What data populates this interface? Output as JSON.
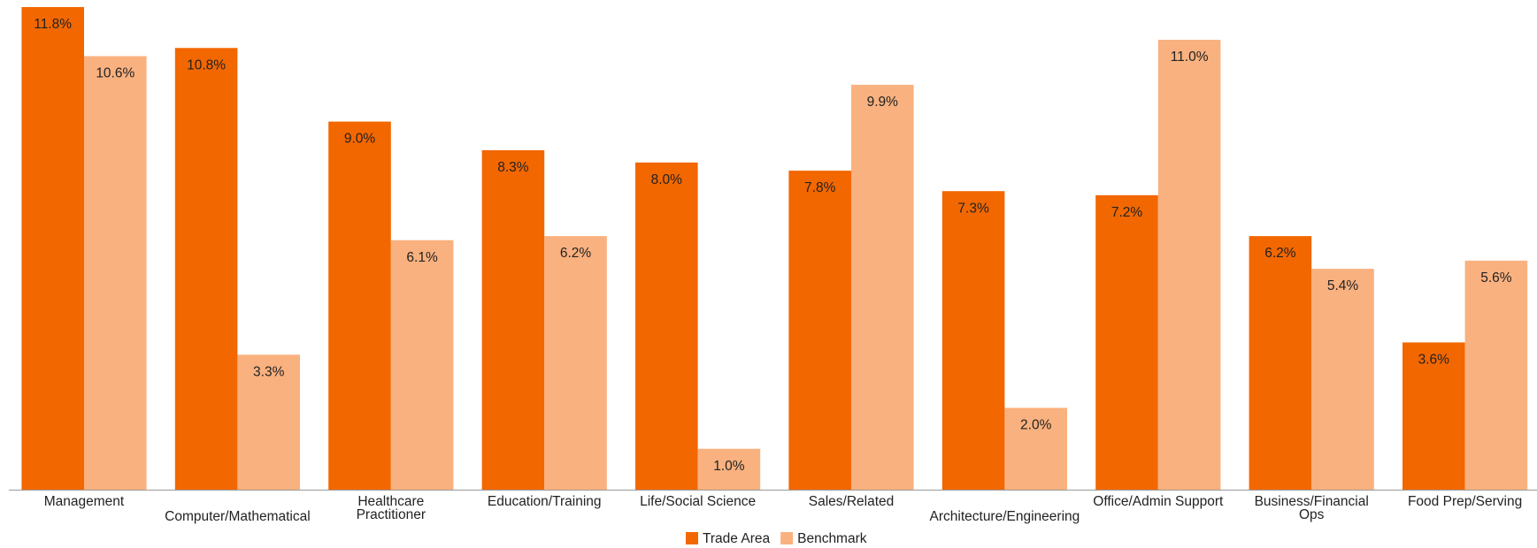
{
  "chart_data": {
    "type": "bar",
    "categories": [
      "Management",
      "Computer/Mathematical",
      "Healthcare Practitioner",
      "Education/Training",
      "Life/Social Science",
      "Sales/Related",
      "Architecture/Engineering",
      "Office/Admin Support",
      "Business/Financial Ops",
      "Food Prep/Serving"
    ],
    "series": [
      {
        "name": "Trade Area",
        "color": "#f26700",
        "values": [
          11.8,
          10.8,
          9.0,
          8.3,
          8.0,
          7.8,
          7.3,
          7.2,
          6.2,
          3.6
        ],
        "value_labels": [
          "11.8%",
          "10.8%",
          "9.0%",
          "8.3%",
          "8.0%",
          "7.8%",
          "7.3%",
          "7.2%",
          "6.2%",
          "3.6%"
        ]
      },
      {
        "name": "Benchmark",
        "color": "#f9b17f",
        "values": [
          10.6,
          3.3,
          6.1,
          6.2,
          1.0,
          9.9,
          2.0,
          11.0,
          5.4,
          5.6
        ],
        "value_labels": [
          "10.6%",
          "3.3%",
          "6.1%",
          "6.2%",
          "1.0%",
          "9.9%",
          "2.0%",
          "11.0%",
          "5.4%",
          "5.6%"
        ]
      }
    ],
    "legend": "bottom"
  }
}
